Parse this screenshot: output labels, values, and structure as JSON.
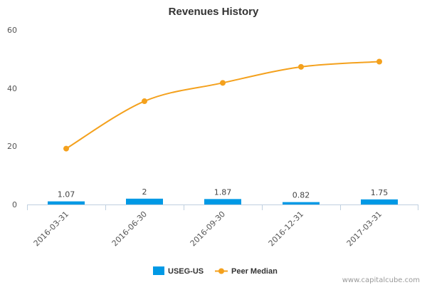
{
  "chart_data": {
    "type": "bar",
    "title": "Revenues History",
    "categories": [
      "2016-03-31",
      "2016-06-30",
      "2016-09-30",
      "2016-12-31",
      "2017-03-31"
    ],
    "series": [
      {
        "name": "USEG-US",
        "type": "bar",
        "color": "#0099e5",
        "values": [
          1.07,
          2,
          1.87,
          0.82,
          1.75
        ],
        "labels": [
          "1.07",
          "2",
          "1.87",
          "0.82",
          "1.75"
        ]
      },
      {
        "name": "Peer Median",
        "type": "line",
        "color": "#f4a11d",
        "values": [
          19.2,
          35.5,
          41.8,
          47.3,
          49.1
        ]
      }
    ],
    "yticks": [
      "60",
      "40",
      "20",
      "0"
    ],
    "ylim": [
      0,
      60
    ],
    "grid": false,
    "legend": "bottom-center"
  },
  "credit": "www.capitalcube.com"
}
